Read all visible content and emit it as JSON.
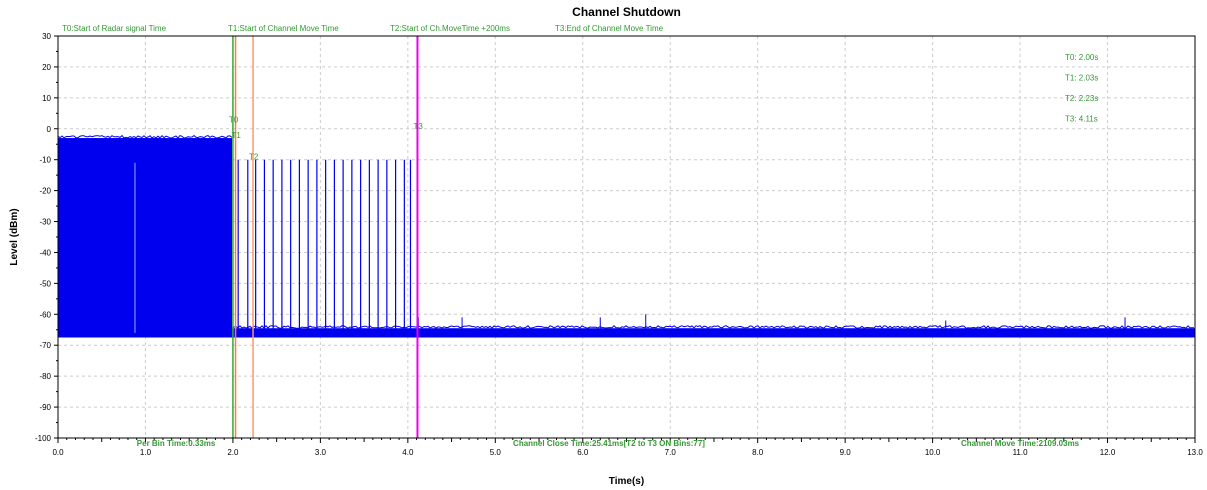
{
  "chart_data": {
    "type": "line",
    "title": "Channel Shutdown",
    "xlabel": "Time(s)",
    "ylabel": "Level (dBm)",
    "xlim": [
      0,
      13
    ],
    "ylim": [
      -100,
      30
    ],
    "x_ticks": [
      "0.0",
      "1.0",
      "2.0",
      "3.0",
      "4.0",
      "5.0",
      "6.0",
      "7.0",
      "8.0",
      "9.0",
      "10.0",
      "11.0",
      "12.0",
      "13.0"
    ],
    "y_ticks": [
      "30",
      "20",
      "10",
      "0",
      "-10",
      "-20",
      "-30",
      "-40",
      "-50",
      "-60",
      "-70",
      "-80",
      "-90",
      "-100"
    ],
    "grid": true,
    "series": [
      {
        "signal_segments": [
          {
            "x_start": 0.0,
            "x_end": 1.99,
            "y_low": -67.5,
            "y_high": -3
          },
          {
            "x_start": 1.99,
            "x_end": 13.0,
            "y_low": -67.5,
            "y_high": -64.5
          }
        ],
        "pulse_x": [
          2.06,
          2.17,
          2.26,
          2.36,
          2.46,
          2.56,
          2.66,
          2.76,
          2.86,
          2.96,
          3.06,
          3.16,
          3.26,
          3.36,
          3.46,
          3.56,
          3.66,
          3.76,
          3.86,
          3.96,
          4.03
        ],
        "pulse_y": -10,
        "spikes": [
          {
            "x": 0.88,
            "y": -11
          },
          {
            "x": 4.12,
            "y": -61
          },
          {
            "x": 4.62,
            "y": -61
          },
          {
            "x": 6.2,
            "y": -61
          },
          {
            "x": 6.72,
            "y": -60
          },
          {
            "x": 10.15,
            "y": -62
          },
          {
            "x": 12.2,
            "y": -61
          }
        ],
        "color": "#0000ee"
      }
    ],
    "markers": [
      {
        "label": "T0",
        "legend": "T0:Start of Radar signal Time",
        "x": 2.0,
        "color": "#33aa33",
        "readout": "T0: 2.00s",
        "label_y": 2
      },
      {
        "label": "T1",
        "legend": "T1:Start of Channel Move Time",
        "x": 2.03,
        "color": "#ff7a45",
        "readout": "T1: 2.03s",
        "label_y": -3
      },
      {
        "label": "T2",
        "legend": "T2:Start of Ch.MoveTime +200ms",
        "x": 2.23,
        "color": "#ff9966",
        "readout": "T2: 2.23s",
        "label_y": -10
      },
      {
        "label": "T3",
        "legend": "T3:End of Channel Move Time",
        "x": 4.11,
        "color": "#ee00ee",
        "readout": "T3: 4.11s",
        "label_y": 0
      }
    ],
    "annotations": [
      {
        "text": "Per Bin Time:0.33ms",
        "x": 1.35
      },
      {
        "text": "Channel Close Time:25.41ms[T2 to T3 ON Bins:77]",
        "x": 6.3
      },
      {
        "text": "Channel Move Time:2109.03ms",
        "x": 11.0
      }
    ],
    "text_color": "#339933",
    "grid_color": "#cccccc"
  }
}
